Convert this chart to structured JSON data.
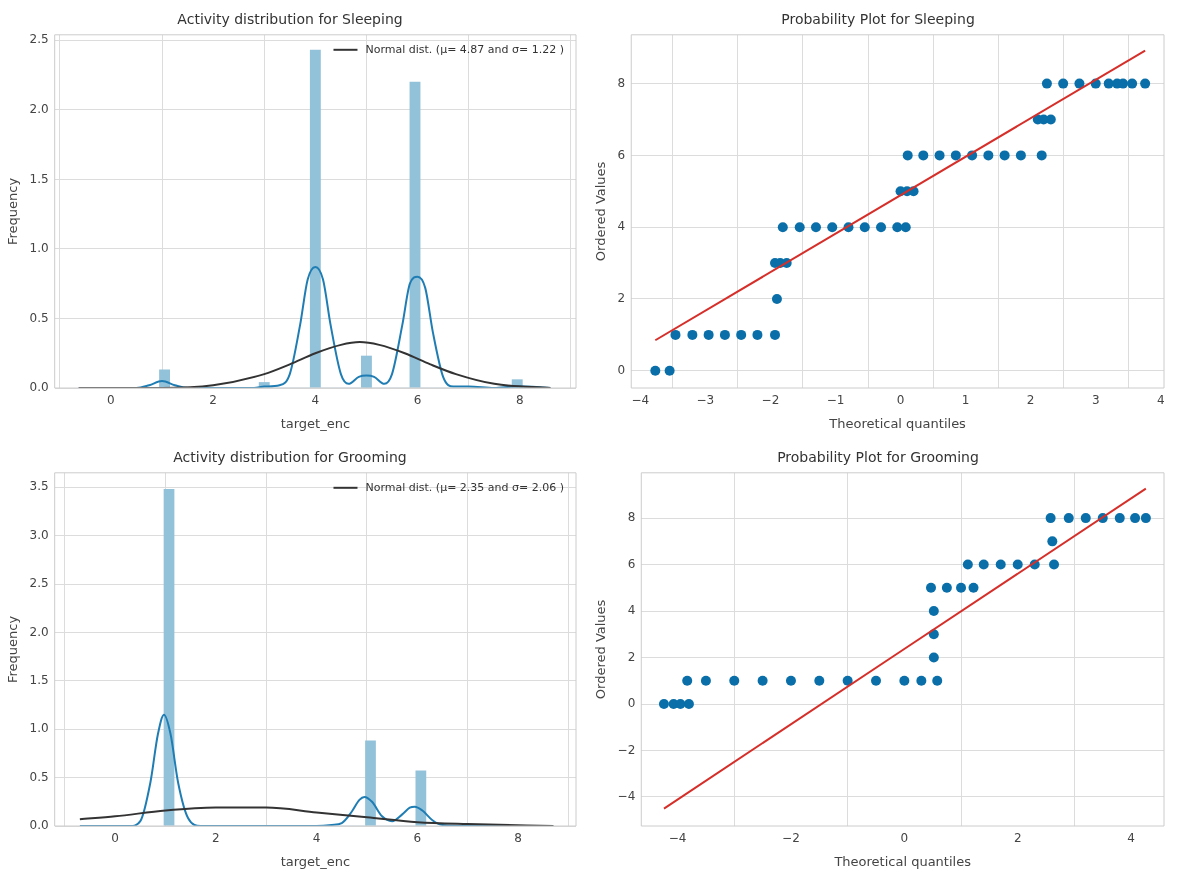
{
  "chart_data": [
    {
      "type": "histogram",
      "title": "Activity distribution for Sleeping",
      "xlabel": "target_enc",
      "ylabel": "Frequency",
      "color": "#92c2da",
      "bins": [
        0.95,
        1.15,
        2.9,
        3.1,
        3.9,
        4.1,
        4.9,
        5.1,
        5.85,
        6.05,
        7.85,
        8.05
      ],
      "values": [
        0.13,
        0,
        0.04,
        0,
        2.43,
        0,
        0.23,
        0,
        2.2,
        0,
        0.06
      ],
      "series": [
        {
          "type": "line",
          "color": "#1f7db3",
          "x": [
            -0.63,
            0.5,
            0.75,
            1.0,
            1.25,
            1.5,
            2.8,
            3.0,
            3.3,
            3.5,
            3.7,
            3.85,
            4.0,
            4.15,
            4.3,
            4.5,
            4.65,
            4.85,
            5.0,
            5.15,
            5.35,
            5.5,
            5.7,
            5.85,
            6.0,
            6.15,
            6.3,
            6.5,
            6.7,
            7.0,
            7.5,
            7.9,
            8.1,
            8.6
          ],
          "values": [
            0,
            0,
            0.02,
            0.05,
            0.02,
            0,
            0,
            0.01,
            0.02,
            0.1,
            0.45,
            0.78,
            0.87,
            0.78,
            0.45,
            0.1,
            0.03,
            0.08,
            0.09,
            0.08,
            0.03,
            0.1,
            0.45,
            0.75,
            0.8,
            0.72,
            0.4,
            0.08,
            0.01,
            0.01,
            0,
            0.01,
            0.01,
            0
          ]
        },
        {
          "type": "line",
          "name": "Normal dist. (μ= 4.87 and σ= 1.22 )",
          "color": "#333333",
          "x": [
            -0.63,
            1,
            2,
            3,
            3.5,
            4,
            4.5,
            4.87,
            5.25,
            5.75,
            6.25,
            6.75,
            7.5,
            8.6
          ],
          "values": [
            0,
            0,
            0.02,
            0.1,
            0.17,
            0.25,
            0.31,
            0.33,
            0.31,
            0.25,
            0.17,
            0.1,
            0.03,
            0
          ]
        }
      ],
      "xlim": [
        -1.1,
        9.1
      ],
      "ylim": [
        0,
        2.54
      ],
      "xticks": [
        0,
        2,
        4,
        6,
        8
      ],
      "yticks": [
        {
          "value": 0,
          "label": "0.0"
        },
        {
          "value": 0.5,
          "label": "0.5"
        },
        {
          "value": 1,
          "label": "1.0"
        },
        {
          "value": 1.5,
          "label": "1.5"
        },
        {
          "value": 2,
          "label": "2.0"
        },
        {
          "value": 2.5,
          "label": "2.5"
        }
      ],
      "grid": true,
      "legend": "top right"
    },
    {
      "type": "scatter",
      "title": "Probability Plot for Sleeping",
      "xlabel": "Theoretical quantiles",
      "ylabel": "Ordered Values",
      "series": [
        {
          "type": "scatter",
          "marker": "circle",
          "color": "#0a6fa8",
          "x": [
            -3.77,
            -3.55,
            -3.46,
            -3.2,
            -2.95,
            -2.7,
            -2.45,
            -2.2,
            -1.93,
            -1.9,
            -1.93,
            -1.85,
            -1.75,
            -1.81,
            -1.55,
            -1.3,
            -1.05,
            -0.8,
            -0.55,
            -0.3,
            -0.05,
            0.08,
            0.0,
            0.1,
            0.2,
            0.11,
            0.35,
            0.6,
            0.85,
            1.1,
            1.35,
            1.6,
            1.85,
            2.17,
            2.11,
            2.2,
            2.31,
            2.25,
            2.5,
            2.75,
            3.0,
            3.2,
            3.33,
            3.42,
            3.56,
            3.76
          ],
          "values": [
            0,
            0,
            1,
            1,
            1,
            1,
            1,
            1,
            1,
            2,
            3,
            3,
            3,
            4,
            4,
            4,
            4,
            4,
            4,
            4,
            4,
            4,
            5,
            5,
            5,
            6,
            6,
            6,
            6,
            6,
            6,
            6,
            6,
            6,
            7,
            7,
            7,
            8,
            8,
            8,
            8,
            8,
            8,
            8,
            8,
            8
          ]
        },
        {
          "type": "line",
          "color": "#d62f2a",
          "x": [
            -3.77,
            3.76
          ],
          "values": [
            0.85,
            8.92
          ]
        }
      ],
      "xlim": [
        -4.14,
        4.05
      ],
      "ylim": [
        -0.48,
        9.36
      ],
      "xticks": [
        {
          "value": -4,
          "label": "−4"
        },
        {
          "value": -3,
          "label": "−3"
        },
        {
          "value": -2,
          "label": "−2"
        },
        {
          "value": -1,
          "label": "−1"
        },
        0,
        1,
        2,
        3,
        4
      ],
      "yticks": [
        0,
        2,
        4,
        6,
        8
      ],
      "grid": true
    },
    {
      "type": "histogram",
      "title": "Activity distribution for Grooming",
      "xlabel": "target_enc",
      "ylabel": "Frequency",
      "color": "#92c2da",
      "bins": [
        0.97,
        1.17,
        4.97,
        5.17,
        5.97,
        6.17
      ],
      "values": [
        3.48,
        0,
        0.88,
        0,
        0.57
      ],
      "series": [
        {
          "type": "line",
          "color": "#1f7db3",
          "x": [
            -0.7,
            0.3,
            0.5,
            0.7,
            0.85,
            0.97,
            1.1,
            1.25,
            1.45,
            1.7,
            4.0,
            4.3,
            4.5,
            4.7,
            4.85,
            4.95,
            5.1,
            5.3,
            5.5,
            5.7,
            5.85,
            5.95,
            6.1,
            6.3,
            6.5,
            7.0,
            8.7
          ],
          "values": [
            0,
            0,
            0.05,
            0.45,
            0.95,
            1.15,
            0.95,
            0.45,
            0.08,
            0,
            0,
            0.01,
            0.03,
            0.15,
            0.27,
            0.3,
            0.25,
            0.1,
            0.05,
            0.12,
            0.19,
            0.2,
            0.16,
            0.06,
            0.01,
            0,
            0
          ]
        },
        {
          "type": "line",
          "name": "Normal dist. (μ= 2.35 and σ= 2.06 )",
          "color": "#333333",
          "x": [
            -0.7,
            0,
            1,
            2,
            2.35,
            3,
            4,
            5,
            6,
            7,
            8.7
          ],
          "values": [
            0.07,
            0.1,
            0.16,
            0.19,
            0.19,
            0.19,
            0.14,
            0.09,
            0.04,
            0.02,
            0
          ]
        }
      ],
      "xlim": [
        -1.2,
        9.15
      ],
      "ylim": [
        0,
        3.65
      ],
      "xticks": [
        0,
        2,
        4,
        6,
        8
      ],
      "yticks": [
        {
          "value": 0,
          "label": "0.0"
        },
        {
          "value": 0.5,
          "label": "0.5"
        },
        {
          "value": 1,
          "label": "1.0"
        },
        {
          "value": 1.5,
          "label": "1.5"
        },
        {
          "value": 2,
          "label": "2.0"
        },
        {
          "value": 2.5,
          "label": "2.5"
        },
        {
          "value": 3,
          "label": "3.0"
        },
        {
          "value": 3.5,
          "label": "3.5"
        }
      ],
      "grid": true,
      "legend": "top right"
    },
    {
      "type": "scatter",
      "title": "Probability Plot for Grooming",
      "xlabel": "Theoretical quantiles",
      "ylabel": "Ordered Values",
      "series": [
        {
          "type": "scatter",
          "marker": "circle",
          "color": "#0a6fa8",
          "x": [
            -4.24,
            -4.07,
            -3.95,
            -3.8,
            -3.83,
            -3.5,
            -3.0,
            -2.5,
            -2.0,
            -1.5,
            -1.0,
            -0.5,
            0,
            0.3,
            0.58,
            0.52,
            0.52,
            0.52,
            0.47,
            0.75,
            1.0,
            1.22,
            1.12,
            1.4,
            1.7,
            2.0,
            2.3,
            2.64,
            2.61,
            2.58,
            2.9,
            3.2,
            3.5,
            3.8,
            4.07,
            4.26
          ],
          "values": [
            0,
            0,
            0,
            0,
            1,
            1,
            1,
            1,
            1,
            1,
            1,
            1,
            1,
            1,
            1,
            2,
            3,
            4,
            5,
            5,
            5,
            5,
            6,
            6,
            6,
            6,
            6,
            6,
            7,
            8,
            8,
            8,
            8,
            8,
            8,
            8
          ]
        },
        {
          "type": "line",
          "color": "#d62f2a",
          "x": [
            -4.24,
            4.26
          ],
          "values": [
            -4.5,
            9.27
          ]
        }
      ],
      "xlim": [
        -4.64,
        4.58
      ],
      "ylim": [
        -5.25,
        9.95
      ],
      "xticks": [
        {
          "value": -4,
          "label": "−4"
        },
        {
          "value": -2,
          "label": "−2"
        },
        0,
        2,
        4
      ],
      "yticks": [
        {
          "value": -4,
          "label": "−4"
        },
        {
          "value": -2,
          "label": "−2"
        },
        0,
        2,
        4,
        6,
        8
      ],
      "grid": true
    }
  ]
}
